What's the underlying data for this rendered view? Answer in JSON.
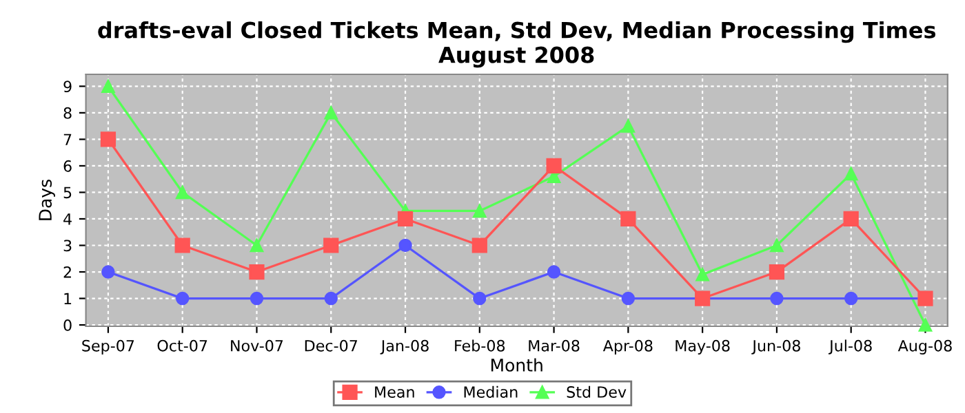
{
  "chart_data": {
    "type": "line",
    "title": "drafts-eval Closed Tickets Mean, Std Dev, Median Processing Times\nAugust 2008",
    "xlabel": "Month",
    "ylabel": "Days",
    "categories": [
      "Sep-07",
      "Oct-07",
      "Nov-07",
      "Dec-07",
      "Jan-08",
      "Feb-08",
      "Mar-08",
      "Apr-08",
      "May-08",
      "Jun-08",
      "Jul-08",
      "Aug-08"
    ],
    "series": [
      {
        "name": "Mean",
        "color": "#ff5555",
        "marker": "square",
        "values": [
          7,
          3,
          2,
          3,
          4,
          3,
          6,
          4,
          1,
          2,
          4,
          1
        ]
      },
      {
        "name": "Median",
        "color": "#5555ff",
        "marker": "circle",
        "values": [
          2,
          1,
          1,
          1,
          3,
          1,
          2,
          1,
          1,
          1,
          1,
          1
        ]
      },
      {
        "name": "Std Dev",
        "color": "#55ff55",
        "marker": "triangle",
        "values": [
          9,
          5,
          3,
          8,
          4.3,
          4.3,
          5.6,
          7.5,
          1.9,
          3.0,
          5.7,
          0
        ]
      }
    ],
    "ylim": [
      -0.05,
      9.45
    ],
    "yticks": [
      0,
      1,
      2,
      3,
      4,
      5,
      6,
      7,
      8,
      9
    ],
    "grid": true,
    "legend": "bottom",
    "line_style": "solid"
  }
}
